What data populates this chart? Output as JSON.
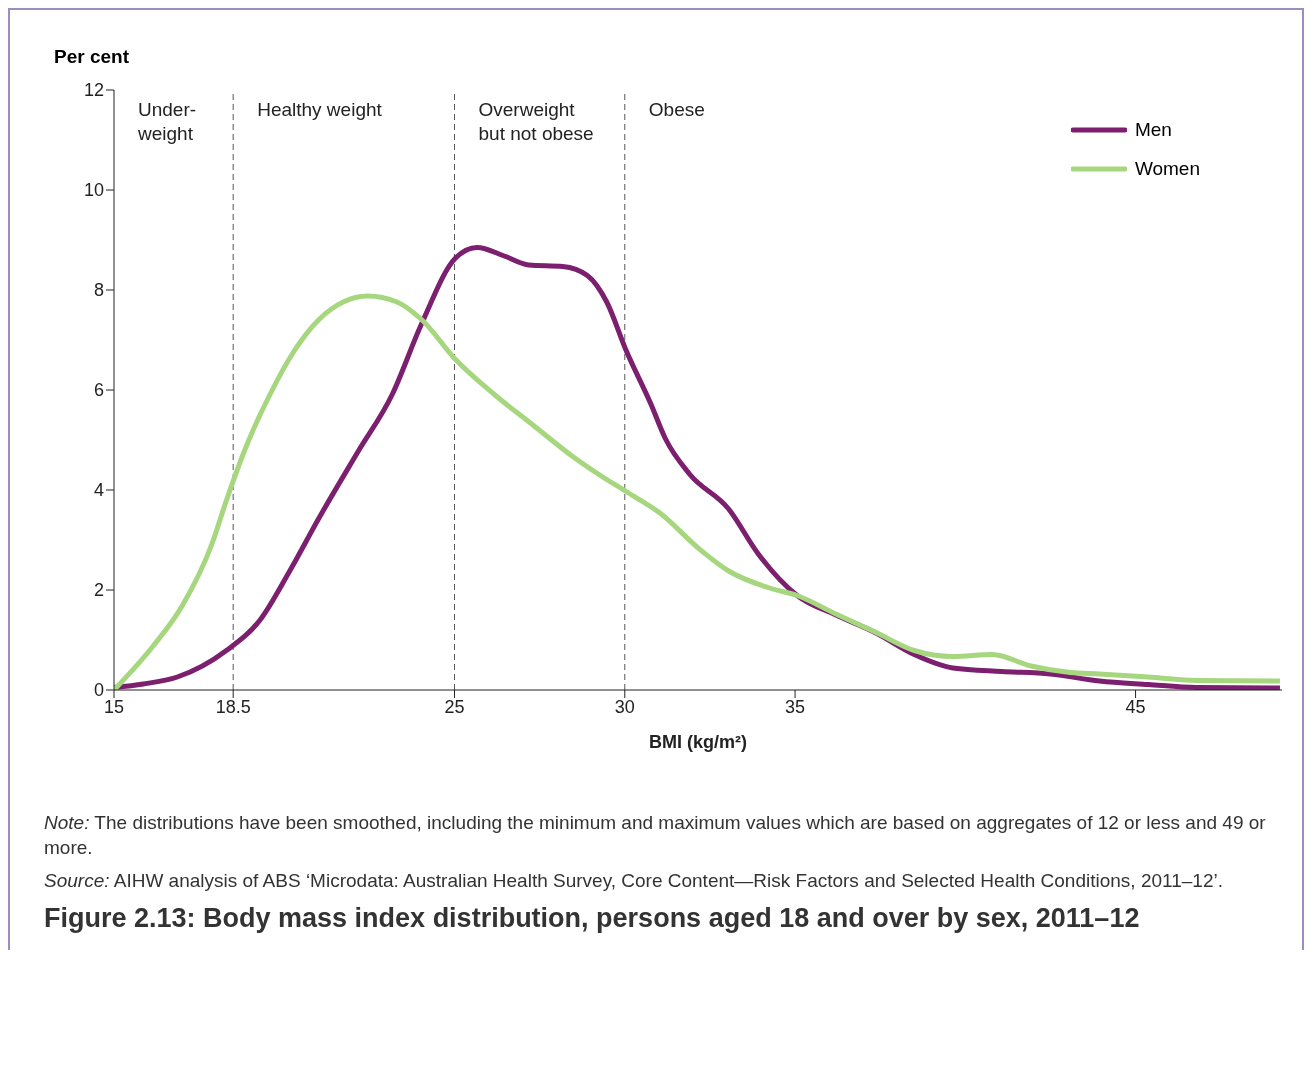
{
  "chart_data": {
    "type": "line",
    "title": "Figure 2.13: Body mass index distribution, persons aged 18 and over by sex, 2011–12",
    "xlabel": "BMI (kg/m²)",
    "ylabel": "Per cent",
    "xlim": [
      15,
      49.3
    ],
    "xticks": [
      15,
      18.5,
      25,
      30,
      35,
      45
    ],
    "ylim": [
      0,
      12
    ],
    "yticks": [
      0,
      2,
      4,
      6,
      8,
      10,
      12
    ],
    "legend": "top right",
    "marker": "none",
    "line_style": "solid",
    "series": [
      {
        "name": "Men",
        "color": "#7b1f6e",
        "x": [
          15,
          15.86,
          16.86,
          18.3,
          19.3,
          20.16,
          21.02,
          22.16,
          23.17,
          24.03,
          25.03,
          25.66,
          26.46,
          27.18,
          28.18,
          28.9,
          29.47,
          30.04,
          30.76,
          31.19,
          31.9,
          33.05,
          33.91,
          35.06,
          36.2,
          37.35,
          38.5,
          39.64,
          41.07,
          42.5,
          43.94,
          45.37,
          46.8,
          49.24
        ],
        "values": [
          0.05,
          0.12,
          0.26,
          0.79,
          1.41,
          2.38,
          3.44,
          4.76,
          5.91,
          7.32,
          8.64,
          8.85,
          8.68,
          8.5,
          8.47,
          8.29,
          7.76,
          6.79,
          5.73,
          5.03,
          4.32,
          3.62,
          2.73,
          1.89,
          1.5,
          1.15,
          0.71,
          0.44,
          0.37,
          0.32,
          0.18,
          0.11,
          0.05,
          0.04
        ]
      },
      {
        "name": "Women",
        "color": "#a6d67e",
        "x": [
          15,
          16.15,
          17,
          17.87,
          18.3,
          18.87,
          19.58,
          20.3,
          21.02,
          21.73,
          22.45,
          23.31,
          24.03,
          25.03,
          26.17,
          27.32,
          28.47,
          29.33,
          30.04,
          31.05,
          32.19,
          33.05,
          34.2,
          35.06,
          36.2,
          37.35,
          38.5,
          39.64,
          40.79,
          41.93,
          43.08,
          43.94,
          45.37,
          46.8,
          49.24
        ],
        "values": [
          0,
          0.88,
          1.68,
          2.91,
          3.79,
          4.85,
          5.91,
          6.79,
          7.41,
          7.76,
          7.88,
          7.76,
          7.41,
          6.61,
          5.91,
          5.29,
          4.67,
          4.27,
          3.97,
          3.53,
          2.82,
          2.38,
          2.05,
          1.89,
          1.52,
          1.16,
          0.79,
          0.67,
          0.71,
          0.48,
          0.35,
          0.32,
          0.26,
          0.19,
          0.18
        ]
      }
    ],
    "ref_lines": [
      {
        "axis": "x",
        "value": 18.5,
        "color": "#555555",
        "line_style": "dashed"
      },
      {
        "axis": "x",
        "value": 25,
        "color": "#555555",
        "line_style": "dashed"
      },
      {
        "axis": "x",
        "value": 30,
        "color": "#555555",
        "line_style": "dashed"
      }
    ],
    "annotations": [
      "Under-\nweight",
      "Healthy weight",
      "Overweight\nbut not obese",
      "Obese",
      "Note: The distributions have been smoothed, including the minimum and maximum values which are based on aggregates of 12 or less and 49 or more.",
      "Source: AIHW analysis of ABS ‘Microdata: Australian Health Survey, Core Content—Risk Factors and Selected Health Conditions, 2011–12’."
    ]
  }
}
